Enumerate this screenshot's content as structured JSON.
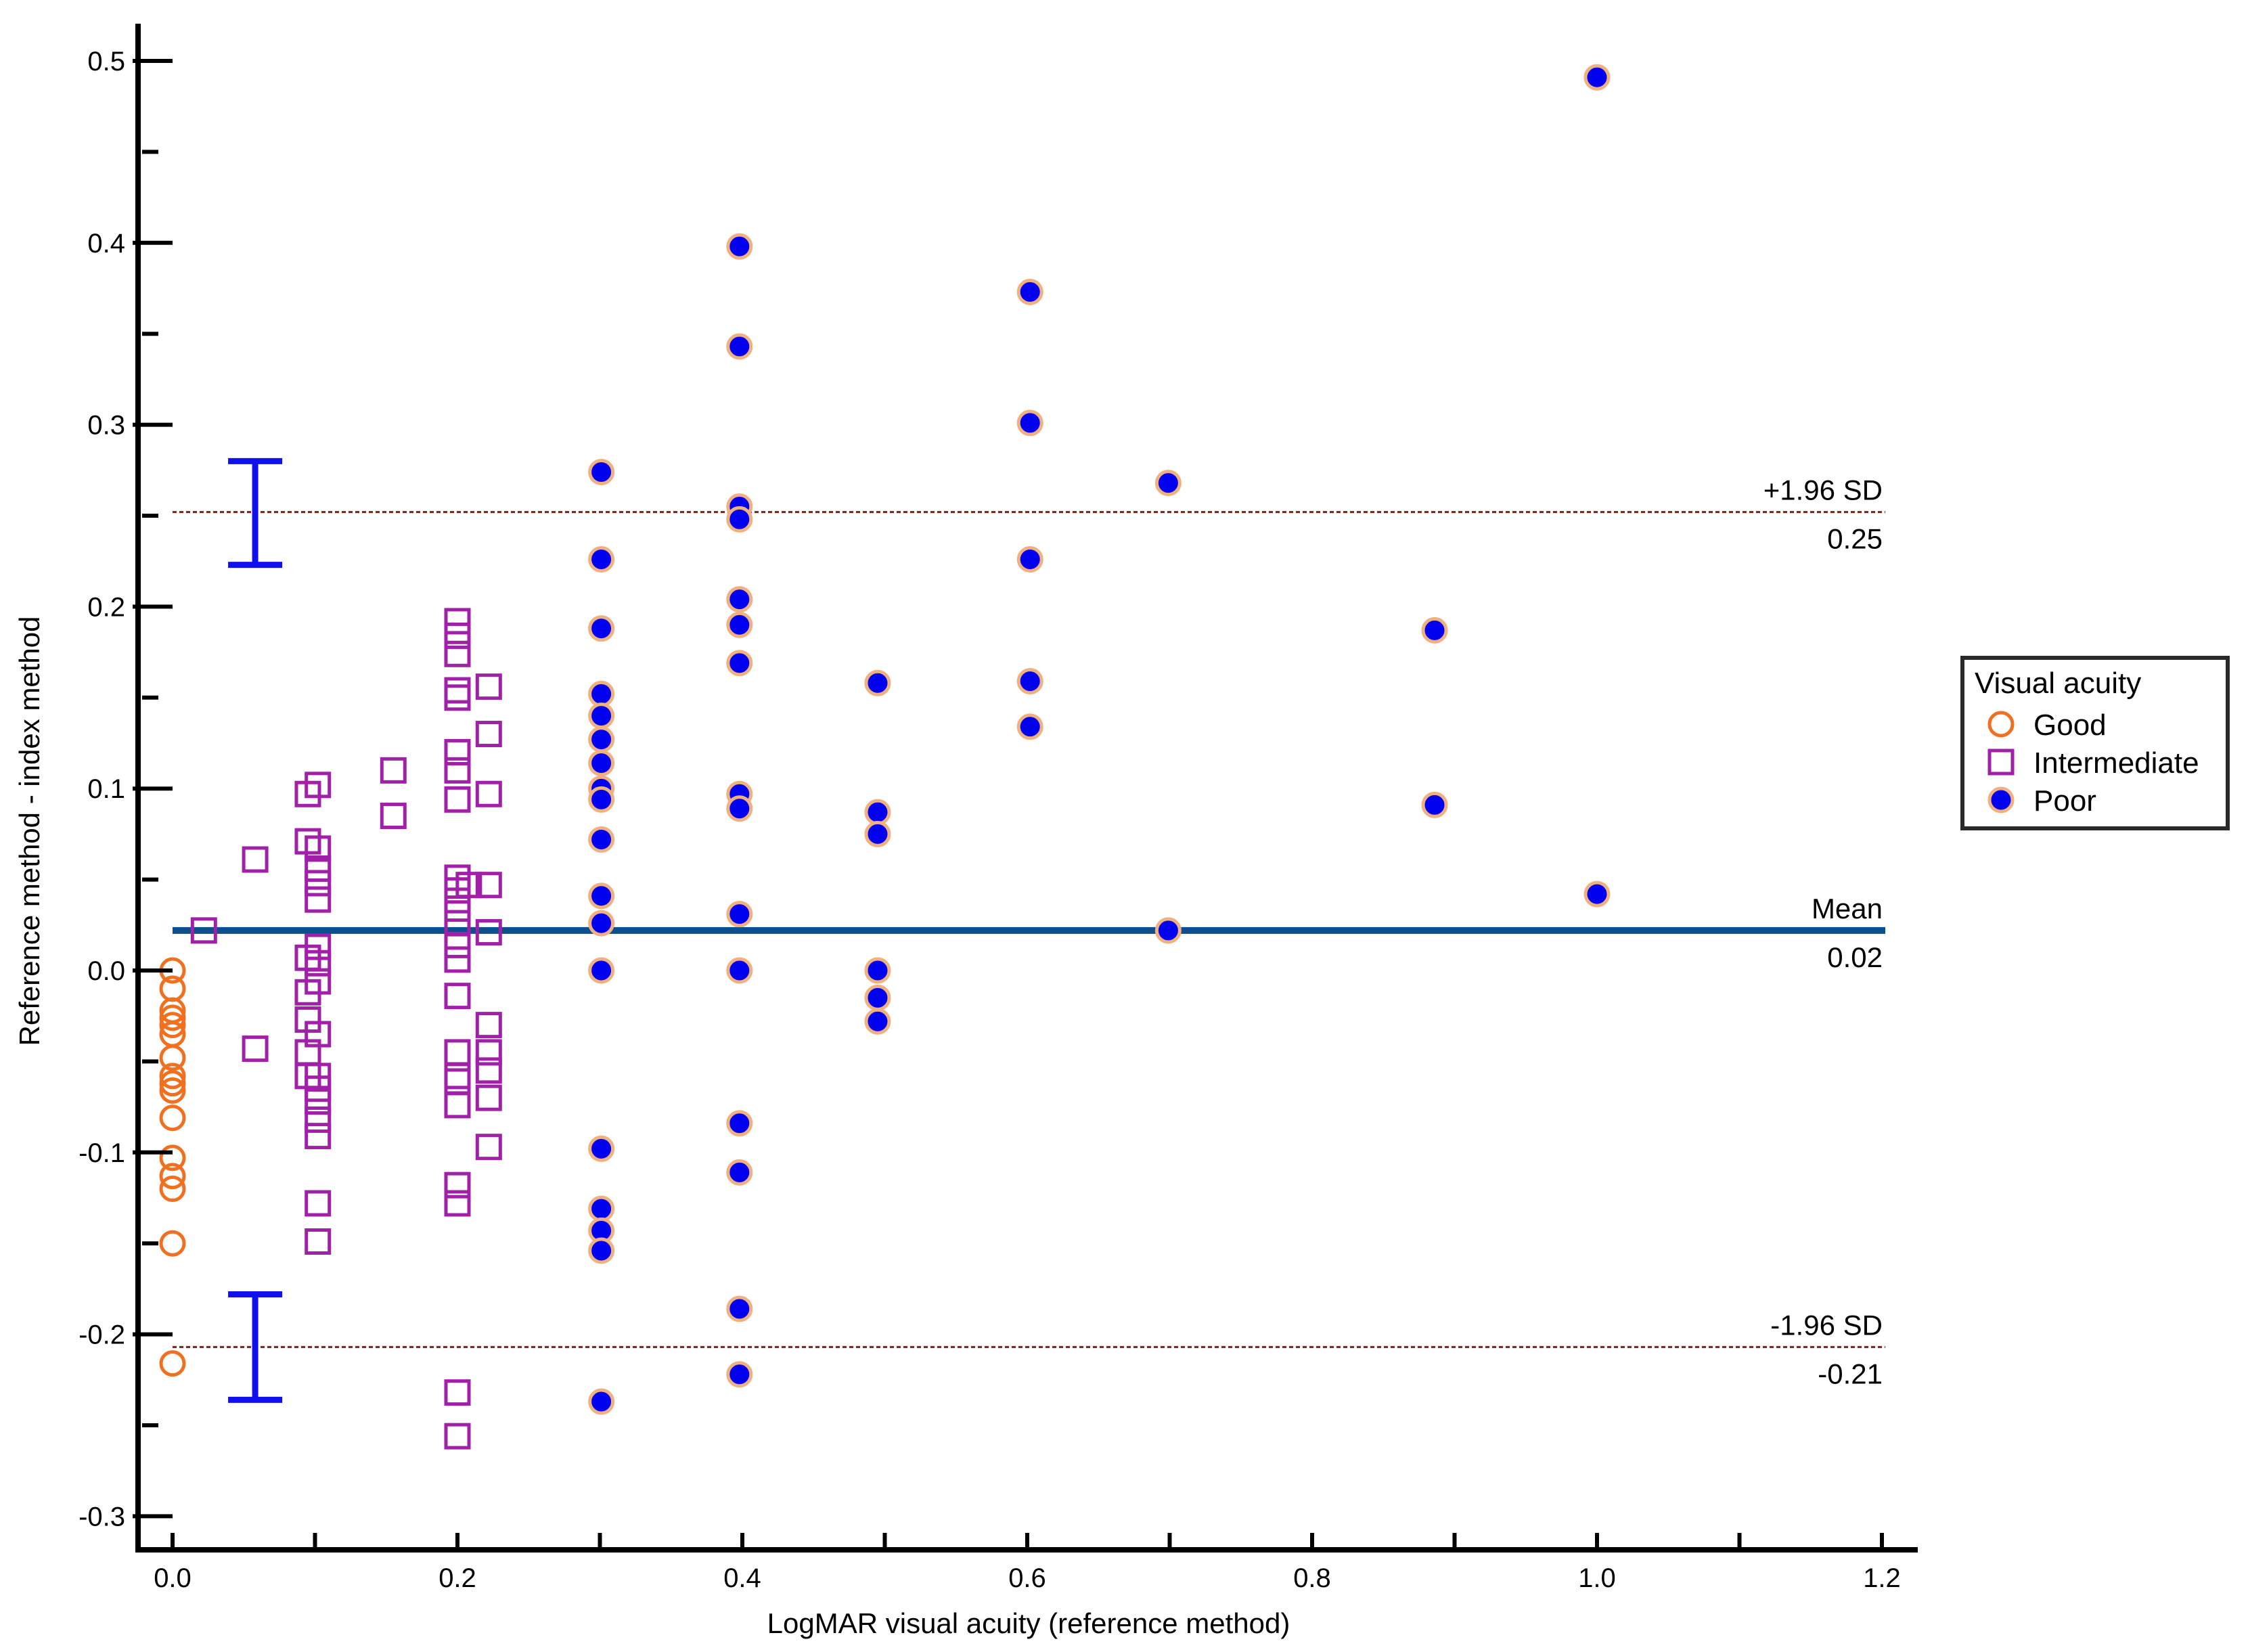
{
  "chart_data": {
    "type": "scatter",
    "title": "",
    "xlabel": "LogMAR visual acuity (reference method)",
    "ylabel": "Reference method - index method",
    "xlim": [
      -0.025,
      1.225
    ],
    "ylim": [
      -0.323,
      0.52
    ],
    "x_ticks": [
      0.0,
      0.1,
      0.2,
      0.3,
      0.4,
      0.5,
      0.6,
      0.7,
      0.8,
      0.9,
      1.0,
      1.1,
      1.2
    ],
    "x_tick_labels": [
      {
        "value": 0.0,
        "label": "0.0"
      },
      {
        "value": 0.2,
        "label": "0.2"
      },
      {
        "value": 0.4,
        "label": "0.4"
      },
      {
        "value": 0.6,
        "label": "0.6"
      },
      {
        "value": 0.8,
        "label": "0.8"
      },
      {
        "value": 1.0,
        "label": "1.0"
      },
      {
        "value": 1.2,
        "label": "1.2"
      }
    ],
    "y_ticks": [
      -0.3,
      -0.25,
      -0.2,
      -0.15,
      -0.1,
      -0.05,
      0.0,
      0.05,
      0.1,
      0.15,
      0.2,
      0.25,
      0.3,
      0.35,
      0.4,
      0.45,
      0.5
    ],
    "y_tick_labels": [
      {
        "value": -0.3,
        "label": "-0.3"
      },
      {
        "value": -0.2,
        "label": "-0.2"
      },
      {
        "value": -0.1,
        "label": "-0.1"
      },
      {
        "value": 0.0,
        "label": "0.0"
      },
      {
        "value": 0.1,
        "label": "0.1"
      },
      {
        "value": 0.2,
        "label": "0.2"
      },
      {
        "value": 0.3,
        "label": "0.3"
      },
      {
        "value": 0.4,
        "label": "0.4"
      },
      {
        "value": 0.5,
        "label": "0.5"
      }
    ],
    "grid": false,
    "legend": {
      "title": "Visual acuity",
      "placement": "right"
    },
    "reference_lines": [
      {
        "name": "mean",
        "value": 0.022,
        "label_top": "Mean",
        "label_bottom": "0.02",
        "color": "#0b4f8f",
        "style": "solid"
      },
      {
        "name": "upper-loa",
        "value": 0.252,
        "label_top": "+1.96 SD",
        "label_bottom": "0.25",
        "color": "#8b1a1a",
        "style": "dashed"
      },
      {
        "name": "lower-loa",
        "value": -0.207,
        "label_top": "-1.96 SD",
        "label_bottom": "-0.21",
        "color": "#8b1a1a",
        "style": "dashed"
      }
    ],
    "confidence_intervals": [
      {
        "name": "upper-loa-ci",
        "x": 0.058,
        "low": 0.223,
        "high": 0.28,
        "color": "#1010ee"
      },
      {
        "name": "lower-loa-ci",
        "x": 0.058,
        "low": -0.236,
        "high": -0.178,
        "color": "#1010ee"
      }
    ],
    "series": [
      {
        "name": "Good",
        "marker": "circle-open",
        "color": "#f07020",
        "points": [
          [
            0,
            0
          ],
          [
            0,
            -0.01
          ],
          [
            0,
            -0.022
          ],
          [
            0,
            -0.026
          ],
          [
            0,
            -0.03
          ],
          [
            0,
            -0.035
          ],
          [
            0,
            -0.048
          ],
          [
            0,
            -0.058
          ],
          [
            0,
            -0.062
          ],
          [
            0,
            -0.066
          ],
          [
            0,
            -0.081
          ],
          [
            0,
            -0.103
          ],
          [
            0,
            -0.113
          ],
          [
            0,
            -0.12
          ],
          [
            0,
            -0.15
          ],
          [
            0,
            -0.216
          ]
        ]
      },
      {
        "name": "Intermediate",
        "marker": "square-open",
        "color": "#a020a8",
        "points": [
          [
            0.022,
            0.022
          ],
          [
            0.058,
            0.061
          ],
          [
            0.058,
            -0.043
          ],
          [
            0.095,
            0.097
          ],
          [
            0.095,
            0.071
          ],
          [
            0.095,
            0.007
          ],
          [
            0.095,
            -0.012
          ],
          [
            0.095,
            -0.027
          ],
          [
            0.095,
            -0.045
          ],
          [
            0.095,
            -0.058
          ],
          [
            0.102,
            0.102
          ],
          [
            0.102,
            0.067
          ],
          [
            0.102,
            0.056
          ],
          [
            0.102,
            0.048
          ],
          [
            0.102,
            0.039
          ],
          [
            0.102,
            0.013
          ],
          [
            0.102,
            0.004
          ],
          [
            0.102,
            -0.006
          ],
          [
            0.102,
            -0.035
          ],
          [
            0.102,
            -0.058
          ],
          [
            0.102,
            -0.065
          ],
          [
            0.102,
            -0.072
          ],
          [
            0.102,
            -0.082
          ],
          [
            0.102,
            -0.091
          ],
          [
            0.102,
            -0.128
          ],
          [
            0.102,
            -0.149
          ],
          [
            0.155,
            0.11
          ],
          [
            0.155,
            0.085
          ],
          [
            0.2,
            0.192
          ],
          [
            0.2,
            0.184
          ],
          [
            0.2,
            0.174
          ],
          [
            0.2,
            0.154
          ],
          [
            0.2,
            0.15
          ],
          [
            0.2,
            0.12
          ],
          [
            0.2,
            0.11
          ],
          [
            0.2,
            0.094
          ],
          [
            0.2,
            0.051
          ],
          [
            0.2,
            0.044
          ],
          [
            0.2,
            0.034
          ],
          [
            0.2,
            0.026
          ],
          [
            0.2,
            0.014
          ],
          [
            0.2,
            0.006
          ],
          [
            0.2,
            -0.014
          ],
          [
            0.2,
            -0.045
          ],
          [
            0.2,
            -0.058
          ],
          [
            0.2,
            -0.061
          ],
          [
            0.2,
            -0.074
          ],
          [
            0.2,
            -0.118
          ],
          [
            0.2,
            -0.128
          ],
          [
            0.2,
            -0.232
          ],
          [
            0.2,
            -0.256
          ],
          [
            0.208,
            0.047
          ],
          [
            0.222,
            0.156
          ],
          [
            0.222,
            0.13
          ],
          [
            0.222,
            0.097
          ],
          [
            0.222,
            0.047
          ],
          [
            0.222,
            0.021
          ],
          [
            0.222,
            -0.03
          ],
          [
            0.222,
            -0.045
          ],
          [
            0.222,
            -0.055
          ],
          [
            0.222,
            -0.07
          ],
          [
            0.222,
            -0.097
          ]
        ]
      },
      {
        "name": "Poor",
        "marker": "circle-filled",
        "color": "#0000ee",
        "edge_color": "#f0b080",
        "points": [
          [
            0.301,
            0.274
          ],
          [
            0.301,
            0.226
          ],
          [
            0.301,
            0.188
          ],
          [
            0.301,
            0.152
          ],
          [
            0.301,
            0.14
          ],
          [
            0.301,
            0.127
          ],
          [
            0.301,
            0.114
          ],
          [
            0.301,
            0.1
          ],
          [
            0.301,
            0.094
          ],
          [
            0.301,
            0.072
          ],
          [
            0.301,
            0.041
          ],
          [
            0.301,
            0.026
          ],
          [
            0.301,
            0.0
          ],
          [
            0.301,
            -0.098
          ],
          [
            0.301,
            -0.131
          ],
          [
            0.301,
            -0.143
          ],
          [
            0.301,
            -0.154
          ],
          [
            0.301,
            -0.237
          ],
          [
            0.398,
            0.398
          ],
          [
            0.398,
            0.343
          ],
          [
            0.398,
            0.255
          ],
          [
            0.398,
            0.248
          ],
          [
            0.398,
            0.204
          ],
          [
            0.398,
            0.19
          ],
          [
            0.398,
            0.169
          ],
          [
            0.398,
            0.097
          ],
          [
            0.398,
            0.089
          ],
          [
            0.398,
            0.031
          ],
          [
            0.398,
            0.0
          ],
          [
            0.398,
            -0.084
          ],
          [
            0.398,
            -0.111
          ],
          [
            0.398,
            -0.186
          ],
          [
            0.398,
            -0.222
          ],
          [
            0.495,
            0.158
          ],
          [
            0.495,
            0.087
          ],
          [
            0.495,
            0.075
          ],
          [
            0.495,
            0.0
          ],
          [
            0.495,
            -0.015
          ],
          [
            0.495,
            -0.028
          ],
          [
            0.602,
            0.373
          ],
          [
            0.602,
            0.301
          ],
          [
            0.602,
            0.226
          ],
          [
            0.602,
            0.159
          ],
          [
            0.602,
            0.134
          ],
          [
            0.699,
            0.268
          ],
          [
            0.699,
            0.022
          ],
          [
            0.886,
            0.187
          ],
          [
            0.886,
            0.091
          ],
          [
            1.0,
            0.491
          ],
          [
            1.0,
            0.042
          ]
        ]
      }
    ]
  }
}
